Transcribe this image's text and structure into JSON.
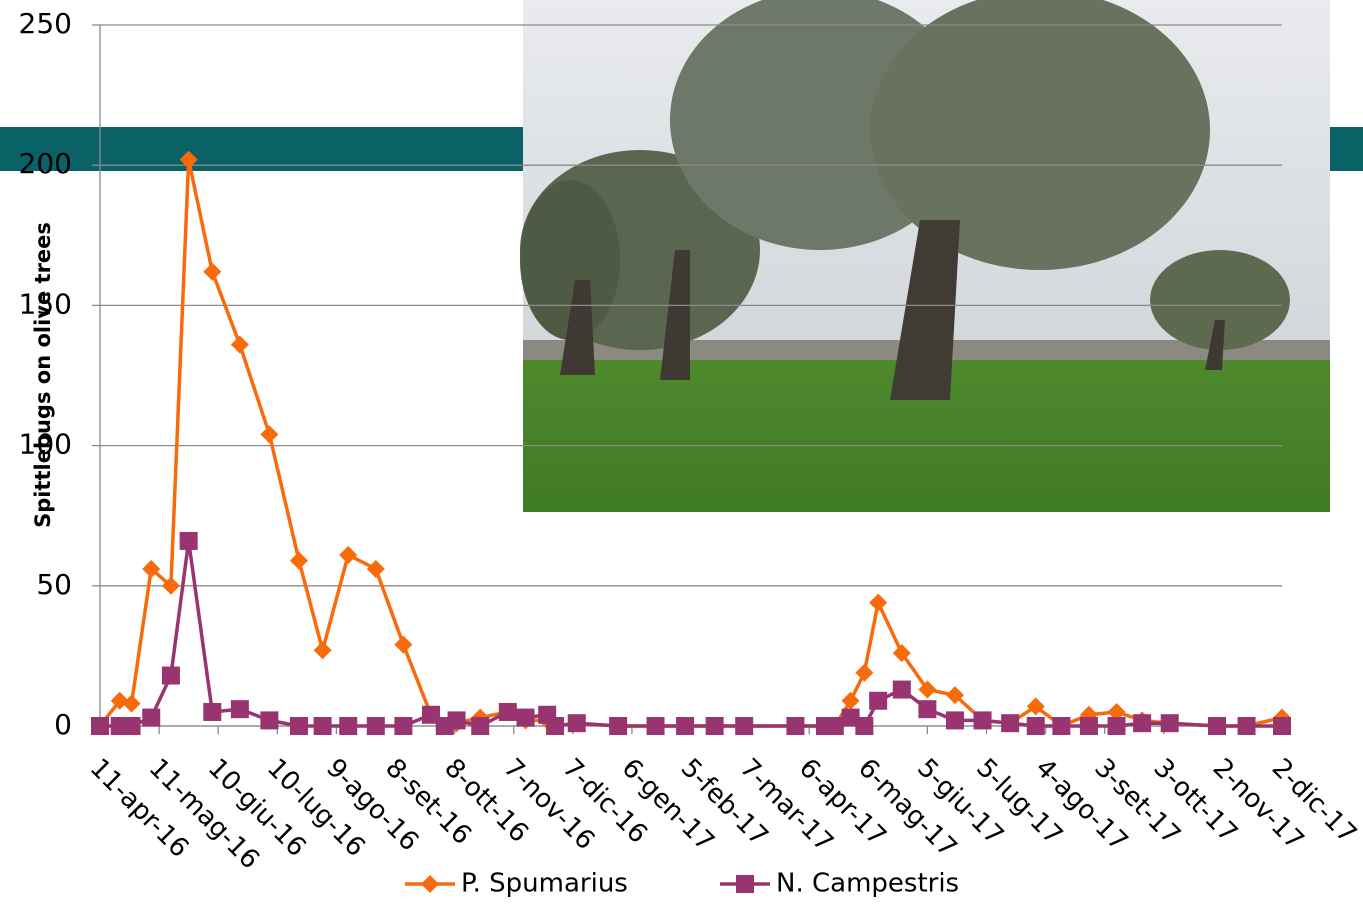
{
  "chart_data": {
    "type": "line",
    "y_label": "Spittlebugs on olive trees",
    "x": [
      "11-apr-16",
      "21-apr-16",
      "27-apr-16",
      "7-mag-16",
      "17-mag-16",
      "26-mag-16",
      "7-giu-16",
      "21-giu-16",
      "6-lug-16",
      "21-lug-16",
      "2-ago-16",
      "15-ago-16",
      "29-ago-16",
      "12-set-16",
      "26-set-16",
      "3-ott-16",
      "9-ott-16",
      "21-ott-16",
      "4-nov-16",
      "13-nov-16",
      "24-nov-16",
      "28-nov-16",
      "9-dic-16",
      "30-dic-16",
      "18-gen-17",
      "2-feb-17",
      "17-feb-17",
      "4-mar-17",
      "30-mar-17",
      "14-apr-17",
      "19-apr-17",
      "27-apr-17",
      "4-mag-17",
      "11-mag-17",
      "23-mag-17",
      "5-giu-17",
      "19-giu-17",
      "3-lug-17",
      "17-lug-17",
      "30-lug-17",
      "12-ago-17",
      "26-ago-17",
      "9-set-17",
      "22-set-17",
      "6-ott-17",
      "30-ott-17",
      "14-nov-17",
      "2-dic-17"
    ],
    "series": [
      {
        "name": "P. Spumarius",
        "color": "#f86a0a",
        "values": [
          0,
          9,
          8,
          56,
          50,
          202,
          162,
          136,
          104,
          59,
          27,
          61,
          56,
          29,
          4,
          0,
          1,
          3,
          5,
          2,
          2,
          0,
          1,
          0,
          0,
          0,
          0,
          0,
          0,
          0,
          0,
          9,
          19,
          44,
          26,
          13,
          11,
          2,
          1,
          7,
          0,
          4,
          5,
          2,
          1,
          0,
          0,
          3
        ]
      },
      {
        "name": "N. Campestris",
        "color": "#983470",
        "values": [
          0,
          0,
          0,
          3,
          18,
          66,
          5,
          6,
          2,
          0,
          0,
          0,
          0,
          0,
          4,
          0,
          2,
          0,
          5,
          3,
          4,
          0,
          1,
          0,
          0,
          0,
          0,
          0,
          0,
          0,
          0,
          3,
          0,
          9,
          13,
          6,
          2,
          2,
          1,
          0,
          0,
          0,
          0,
          1,
          1,
          0,
          0,
          0
        ]
      }
    ],
    "xlim": [
      "11-apr-16",
      "2-dic-17"
    ],
    "xticks": [
      "11-apr-16",
      "11-mag-16",
      "10-giu-16",
      "10-lug-16",
      "9-ago-16",
      "8-set-16",
      "8-ott-16",
      "7-nov-16",
      "7-dic-16",
      "6-gen-17",
      "5-feb-17",
      "7-mar-17",
      "6-apr-17",
      "6-mag-17",
      "5-giu-17",
      "5-lug-17",
      "4-ago-17",
      "3-set-17",
      "3-ott-17",
      "2-nov-17",
      "2-dic-17"
    ],
    "ylim": [
      0,
      250
    ],
    "yticks": [
      0,
      50,
      100,
      150,
      200,
      250
    ],
    "grid": true,
    "legend": "bottom"
  }
}
